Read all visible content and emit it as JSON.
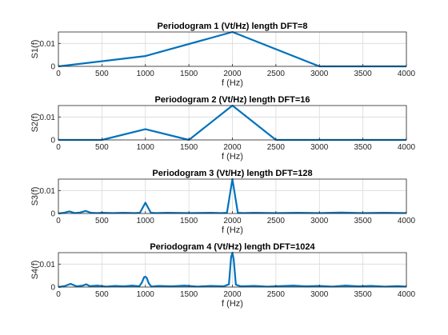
{
  "figure": {
    "line_color": "#0072BD",
    "axis_color": "#262626",
    "grid_color": "#d9d9d9",
    "background": "#ffffff"
  },
  "chart_data": [
    {
      "type": "line",
      "title": "Periodogram 1 (Vt/Hz) length DFT=8",
      "xlabel": "f (Hz)",
      "ylabel": "S1(f)",
      "xlim": [
        0,
        4000
      ],
      "ylim": [
        0,
        0.015
      ],
      "xticks": [
        0,
        500,
        1000,
        1500,
        2000,
        2500,
        3000,
        3500,
        4000
      ],
      "yticks": [
        0,
        0.01
      ],
      "ytick_labels": [
        "0",
        "0.01"
      ],
      "grid": true,
      "x": [
        0,
        1000,
        2000,
        3000,
        4000
      ],
      "y": [
        0,
        0.0045,
        0.015,
        0,
        0
      ]
    },
    {
      "type": "line",
      "title": "Periodogram 2 (Vt/Hz) length DFT=16",
      "xlabel": "f (Hz)",
      "ylabel": "S2(f)",
      "xlim": [
        0,
        4000
      ],
      "ylim": [
        0,
        0.015
      ],
      "xticks": [
        0,
        500,
        1000,
        1500,
        2000,
        2500,
        3000,
        3500,
        4000
      ],
      "yticks": [
        0,
        0.01
      ],
      "ytick_labels": [
        "0",
        "0.01"
      ],
      "grid": true,
      "x": [
        0,
        500,
        1000,
        1500,
        2000,
        2500,
        3000,
        3500,
        4000
      ],
      "y": [
        0,
        0,
        0.0047,
        0,
        0.015,
        0,
        0,
        0,
        0
      ]
    },
    {
      "type": "line",
      "title": "Periodogram 3 (Vt/Hz) length DFT=128",
      "xlabel": "f (Hz)",
      "ylabel": "S3(f)",
      "xlim": [
        0,
        4000
      ],
      "ylim": [
        0,
        0.015
      ],
      "xticks": [
        0,
        500,
        1000,
        1500,
        2000,
        2500,
        3000,
        3500,
        4000
      ],
      "yticks": [
        0,
        0.01
      ],
      "ytick_labels": [
        "0",
        "0.01"
      ],
      "grid": true,
      "x": [
        0,
        62.5,
        125,
        187.5,
        250,
        312.5,
        375,
        437.5,
        500,
        625,
        750,
        875,
        937.5,
        1000,
        1062.5,
        1125,
        1250,
        1500,
        1750,
        1875,
        1937.5,
        2000,
        2062.5,
        2125,
        2250,
        2500,
        2750,
        3000,
        3250,
        3500,
        3750,
        4000
      ],
      "y": [
        0,
        0.0003,
        0.0009,
        0.0002,
        0.0004,
        0.0011,
        0.0003,
        0.0002,
        0.0003,
        0.0002,
        0.0003,
        0.0002,
        0.0003,
        0.0047,
        0.0003,
        0.0002,
        0.0003,
        0.0002,
        0.0003,
        0.0002,
        0.0003,
        0.015,
        0.0003,
        0.0002,
        0.0003,
        0.0002,
        0.0003,
        0.0002,
        0.0004,
        0.0002,
        0.0003,
        0.0002
      ]
    },
    {
      "type": "line",
      "title": "Periodogram 4 (Vt/Hz) length DFT=1024",
      "xlabel": "f (Hz)",
      "ylabel": "S4(f)",
      "xlim": [
        0,
        4000
      ],
      "ylim": [
        0,
        0.015
      ],
      "xticks": [
        0,
        500,
        1000,
        1500,
        2000,
        2500,
        3000,
        3500,
        4000
      ],
      "yticks": [
        0,
        0.01
      ],
      "ytick_labels": [
        "0",
        "0.01"
      ],
      "grid": true,
      "x": [
        0,
        70,
        140,
        210,
        280,
        320,
        360,
        450,
        550,
        650,
        750,
        850,
        930,
        960,
        985,
        1000,
        1015,
        1040,
        1070,
        1150,
        1300,
        1450,
        1600,
        1750,
        1900,
        1960,
        1985,
        2000,
        2015,
        2040,
        2100,
        2250,
        2400,
        2550,
        2700,
        2850,
        3000,
        3150,
        3300,
        3450,
        3600,
        3750,
        3900,
        4000
      ],
      "y": [
        0,
        0.0004,
        0.0014,
        0.0003,
        0.0006,
        0.0012,
        0.0004,
        0.0006,
        0.0002,
        0.0005,
        0.0003,
        0.0006,
        0.0003,
        0.002,
        0.0043,
        0.0045,
        0.004,
        0.0015,
        0.0002,
        0.0005,
        0.0003,
        0.0006,
        0.0002,
        0.0005,
        0.0003,
        0.0012,
        0.013,
        0.015,
        0.012,
        0.001,
        0.0003,
        0.0005,
        0.0002,
        0.0004,
        0.0006,
        0.0003,
        0.0005,
        0.0002,
        0.0006,
        0.0003,
        0.0005,
        0.0002,
        0.0004,
        0.0002
      ]
    }
  ]
}
